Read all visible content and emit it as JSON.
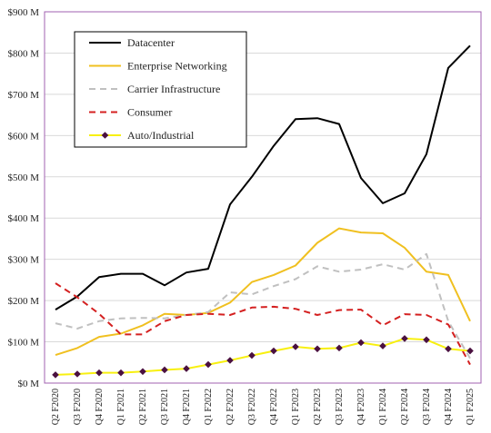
{
  "chart_data": {
    "type": "line",
    "title": "",
    "xlabel": "",
    "ylabel": "",
    "ylim": [
      0,
      900
    ],
    "y_ticks": [
      0,
      100,
      200,
      300,
      400,
      500,
      600,
      700,
      800,
      900
    ],
    "y_tick_labels": [
      "$0 M",
      "$100 M",
      "$200 M",
      "$300 M",
      "$400 M",
      "$500 M",
      "$600 M",
      "$700 M",
      "$800 M",
      "$900 M"
    ],
    "grid": "horizontal",
    "legend_position": "top-left",
    "categories": [
      "Q2 F2020",
      "Q3 F2020",
      "Q4 F2020",
      "Q1 F2021",
      "Q2 F2021",
      "Q3 F2021",
      "Q4 F2021",
      "Q1 F2022",
      "Q2 F2022",
      "Q3 F2022",
      "Q4 F2022",
      "Q1 F2023",
      "Q2 F2023",
      "Q3 F2023",
      "Q4 F2023",
      "Q1 F2024",
      "Q2 F2024",
      "Q3 F2024",
      "Q4 F2024",
      "Q1 F2025"
    ],
    "series": [
      {
        "name": "Datacenter",
        "color": "#000000",
        "style": "solid",
        "values": [
          178,
          210,
          257,
          265,
          265,
          237,
          268,
          277,
          433,
          500,
          575,
          640,
          642,
          628,
          497,
          436,
          460,
          555,
          764,
          818
        ]
      },
      {
        "name": "Enterprise Networking",
        "color": "#f0c020",
        "style": "solid",
        "values": [
          68,
          85,
          112,
          120,
          140,
          168,
          165,
          170,
          195,
          245,
          262,
          285,
          340,
          375,
          365,
          363,
          328,
          270,
          262,
          150
        ]
      },
      {
        "name": "Carrier Infrastructure",
        "color": "#c0c0c0",
        "style": "dashed",
        "values": [
          145,
          132,
          150,
          157,
          158,
          157,
          165,
          172,
          220,
          215,
          235,
          252,
          283,
          270,
          275,
          288,
          275,
          313,
          150,
          60
        ]
      },
      {
        "name": "Consumer",
        "color": "#d42020",
        "style": "dashed",
        "values": [
          242,
          208,
          168,
          118,
          118,
          150,
          165,
          168,
          165,
          183,
          185,
          180,
          165,
          177,
          178,
          140,
          167,
          165,
          142,
          45
        ]
      },
      {
        "name": "Auto/Industrial",
        "color": "#f8f010",
        "style": "solid",
        "marker": "diamond",
        "marker_color": "#4a1040",
        "values": [
          20,
          22,
          25,
          25,
          28,
          32,
          35,
          45,
          55,
          67,
          78,
          88,
          83,
          85,
          98,
          90,
          108,
          105,
          83,
          78
        ]
      }
    ]
  }
}
